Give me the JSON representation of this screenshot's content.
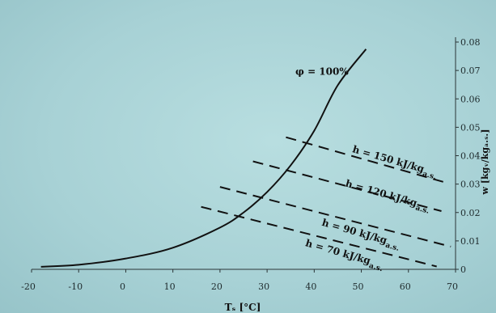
{
  "chart_data": {
    "type": "line",
    "xlabel": "Tₛ [°C]",
    "ylabel": "w [kgᵥ/kgₐ.ₛ.]",
    "xlim": [
      -20,
      70
    ],
    "ylim": [
      0,
      0.08
    ],
    "x_ticks": [
      "-20",
      "-10",
      "0",
      "10",
      "20",
      "30",
      "40",
      "50",
      "60",
      "70"
    ],
    "y_ticks": [
      "0",
      "0.01",
      "0.02",
      "0.03",
      "0.04",
      "0.05",
      "0.06",
      "0.07",
      "0.08"
    ],
    "grid": false,
    "series": [
      {
        "name": "φ = 100%",
        "style": "solid",
        "points": [
          [
            -18,
            0.0009
          ],
          [
            -10,
            0.0016
          ],
          [
            0,
            0.0038
          ],
          [
            10,
            0.0076
          ],
          [
            20,
            0.0147
          ],
          [
            25,
            0.02
          ],
          [
            30,
            0.0272
          ],
          [
            35,
            0.0366
          ],
          [
            40,
            0.0488
          ],
          [
            45,
            0.0648
          ],
          [
            51,
            0.0775
          ]
        ]
      },
      {
        "name": "h = 150 kJ/kgₐ.ₛ.",
        "style": "dashed",
        "points": [
          [
            34,
            0.0465
          ],
          [
            68,
            0.0305
          ]
        ]
      },
      {
        "name": "h = 120 kJ/kgₐ.ₛ.",
        "style": "dashed",
        "points": [
          [
            27,
            0.038
          ],
          [
            67,
            0.0205
          ]
        ]
      },
      {
        "name": "h = 90 kJ/kgₐ.ₛ.",
        "style": "dashed",
        "points": [
          [
            20,
            0.029
          ],
          [
            69,
            0.008
          ]
        ]
      },
      {
        "name": "h = 70 kJ/kgₐ.ₛ.",
        "style": "dashed",
        "points": [
          [
            16,
            0.022
          ],
          [
            66,
            0.001
          ]
        ]
      }
    ],
    "labels": [
      {
        "series": 0,
        "main": "φ = 100%",
        "sub": "",
        "at": [
          36,
          0.0685
        ],
        "rotate": 0
      },
      {
        "series": 1,
        "main": "h = 150 kJ/kg",
        "sub": "a.s.",
        "at": [
          48,
          0.0413
        ],
        "rotate": 16
      },
      {
        "series": 2,
        "main": "h = 120 kJ/kg",
        "sub": "a.s.",
        "at": [
          46.5,
          0.0293
        ],
        "rotate": 16
      },
      {
        "series": 3,
        "main": "h = 90 kJ/kg",
        "sub": "a.s.",
        "at": [
          41.5,
          0.0155
        ],
        "rotate": 16
      },
      {
        "series": 4,
        "main": "h = 70 kJ/kg",
        "sub": "a.s.",
        "at": [
          38,
          0.0083
        ],
        "rotate": 16
      }
    ],
    "colors": {
      "line": "#111111",
      "axis": "#2a3436",
      "text": "#1e2a2c"
    }
  }
}
